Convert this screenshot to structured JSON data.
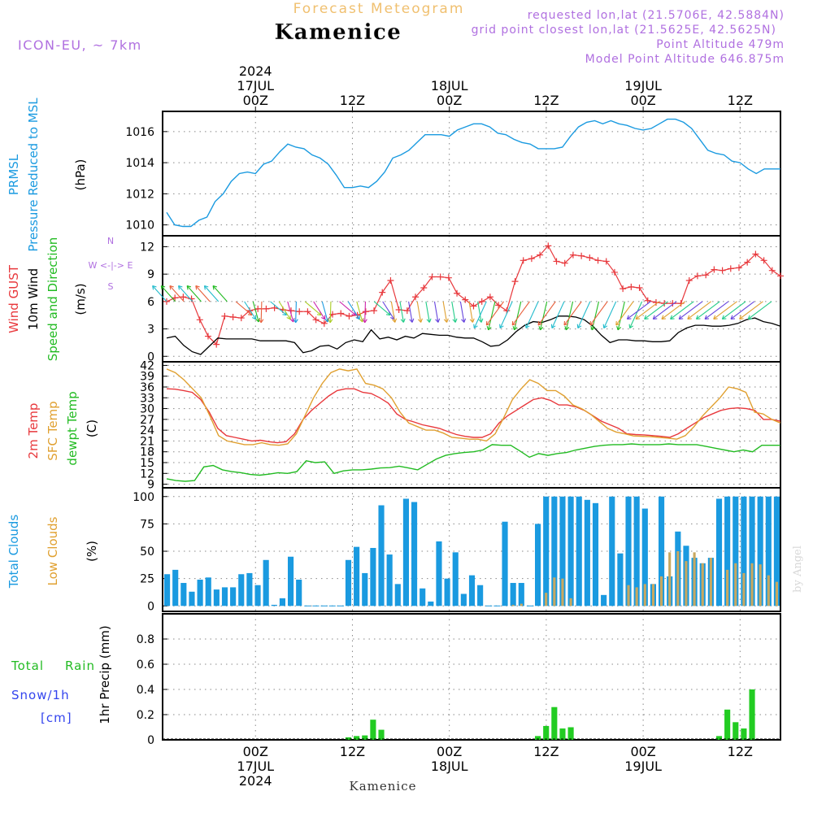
{
  "header": {
    "forecast_title": "Forecast Meteogram",
    "location": "Kamenice",
    "model": "ICON-EU, ~ 7km",
    "requested": "requested lon,lat (21.5706E, 42.5884N)",
    "grid_point": "grid point closest lon,lat (21.5625E, 42.5625N)",
    "point_altitude": "Point Altitude 479m",
    "model_altitude": "Model Point Altitude 646.875m",
    "footer_location": "Kamenice",
    "watermark": "by Angel"
  },
  "colors": {
    "pressure": "#1a9ae0",
    "gust": "#e8383c",
    "wind": "#000000",
    "t2m": "#e8383c",
    "sfc": "#e0a030",
    "dewpt": "#22bb22",
    "total_cloud": "#1a9ae0",
    "low_cloud": "#c8a860",
    "rain": "#22cc22",
    "snow": "#3344ee",
    "model_label": "#b070e0",
    "title_label": "#f0c070"
  },
  "time_axis": {
    "top_labels": [
      {
        "hour": 12,
        "lines": [
          "2024",
          "17JUL",
          "00Z"
        ]
      },
      {
        "hour": 24,
        "lines": [
          "12Z"
        ]
      },
      {
        "hour": 36,
        "lines": [
          "18JUL",
          "00Z"
        ]
      },
      {
        "hour": 48,
        "lines": [
          "12Z"
        ]
      },
      {
        "hour": 60,
        "lines": [
          "19JUL",
          "00Z"
        ]
      },
      {
        "hour": 72,
        "lines": [
          "12Z"
        ]
      }
    ],
    "bottom_labels": [
      {
        "hour": 12,
        "lines": [
          "00Z",
          "17JUL",
          "2024"
        ]
      },
      {
        "hour": 24,
        "lines": [
          "12Z"
        ]
      },
      {
        "hour": 36,
        "lines": [
          "00Z",
          "18JUL"
        ]
      },
      {
        "hour": 48,
        "lines": [
          "12Z"
        ]
      },
      {
        "hour": 60,
        "lines": [
          "00Z",
          "19JUL"
        ]
      },
      {
        "hour": 72,
        "lines": [
          "12Z"
        ]
      }
    ],
    "start_hour": 0.5,
    "end_hour": 77
  },
  "panels": {
    "pressure": {
      "labels": [
        "PRMSL",
        "Pressure Reduced to MSL"
      ],
      "unit": "(hPa)",
      "yticks": [
        1010,
        1012,
        1014,
        1016
      ],
      "ylim": [
        1009.3,
        1017.3
      ]
    },
    "wind": {
      "labels_gust": "Wind GUST",
      "labels_wind": "10m Wind",
      "labels_dir": "Speed and Direction",
      "unit": "(m/s)",
      "compass_n": "N",
      "compass_s": "S",
      "compass_we": "W <-|-> E",
      "yticks": [
        0,
        3,
        6,
        9,
        12
      ],
      "ylim": [
        -0.6,
        13.2
      ]
    },
    "temp": {
      "label_t2m": "2m Temp",
      "label_sfc": "SFC Temp",
      "label_dew": "dewpt Temp",
      "unit": "(C)",
      "yticks": [
        9,
        12,
        15,
        18,
        21,
        24,
        27,
        30,
        33,
        36,
        39,
        42
      ],
      "ylim": [
        8,
        43
      ]
    },
    "clouds": {
      "label_total": "Total Clouds",
      "label_low": "Low Clouds",
      "unit": "(%)",
      "yticks": [
        0,
        25,
        50,
        75,
        100
      ],
      "ylim": [
        -5,
        108
      ]
    },
    "precip": {
      "label_total": "Total",
      "label_rain": "Rain",
      "label_snow": "Snow/1h",
      "label_cm": "[cm]",
      "unit": "1hr Precip (mm)",
      "yticks": [
        0,
        0.2,
        0.4,
        0.6,
        0.8
      ],
      "ylim": [
        0,
        1.0
      ]
    }
  },
  "chart_data": [
    {
      "type": "line",
      "title": "PRMSL Pressure Reduced to MSL",
      "ylabel": "(hPa)",
      "series": [
        {
          "name": "PRMSL",
          "x": [
            1,
            2,
            3,
            4,
            5,
            6,
            7,
            8,
            9,
            10,
            11,
            12,
            13,
            14,
            15,
            16,
            17,
            18,
            19,
            20,
            21,
            22,
            23,
            24,
            25,
            26,
            27,
            28,
            29,
            30,
            31,
            32,
            33,
            34,
            35,
            36,
            37,
            38,
            39,
            40,
            41,
            42,
            43,
            44,
            45,
            46,
            47,
            48,
            49,
            50,
            51,
            52,
            53,
            54,
            55,
            56,
            57,
            58,
            59,
            60,
            61,
            62,
            63,
            64,
            65,
            66,
            67,
            68,
            69,
            70,
            71,
            72,
            73,
            74,
            75,
            76,
            77
          ],
          "values": [
            1010.8,
            1010.0,
            1009.9,
            1009.9,
            1010.3,
            1010.5,
            1011.5,
            1012.0,
            1012.8,
            1013.3,
            1013.4,
            1013.3,
            1013.9,
            1014.1,
            1014.7,
            1015.2,
            1015.0,
            1014.9,
            1014.5,
            1014.3,
            1013.9,
            1013.2,
            1012.4,
            1012.4,
            1012.5,
            1012.4,
            1012.8,
            1013.4,
            1014.3,
            1014.5,
            1014.8,
            1015.3,
            1015.8,
            1015.8,
            1015.8,
            1015.7,
            1016.1,
            1016.3,
            1016.5,
            1016.5,
            1016.3,
            1015.9,
            1015.8,
            1015.5,
            1015.3,
            1015.2,
            1014.9,
            1014.9,
            1014.9,
            1015.0,
            1015.7,
            1016.3,
            1016.6,
            1016.7,
            1016.5,
            1016.7,
            1016.5,
            1016.4,
            1016.2,
            1016.1,
            1016.2,
            1016.5,
            1016.8,
            1016.8,
            1016.6,
            1016.2,
            1015.5,
            1014.8,
            1014.6,
            1014.5,
            1014.1,
            1014.0,
            1013.6,
            1013.3,
            1013.6,
            1013.6,
            1013.6
          ]
        }
      ]
    },
    {
      "type": "line",
      "title": "Wind GUST / 10m Wind Speed and Direction",
      "ylabel": "(m/s)",
      "series": [
        {
          "name": "Wind GUST",
          "values": [
            6.0,
            6.4,
            6.5,
            6.3,
            4.0,
            2.2,
            1.3,
            4.4,
            4.3,
            4.2,
            5.0,
            5.2,
            5.2,
            5.3,
            5.1,
            5.0,
            4.9,
            4.9,
            4.0,
            3.6,
            4.6,
            4.7,
            4.4,
            4.5,
            4.9,
            5.0,
            7.0,
            8.3,
            5.1,
            5.0,
            6.5,
            7.5,
            8.7,
            8.7,
            8.6,
            6.9,
            6.2,
            5.5,
            6.0,
            6.5,
            5.6,
            5.0,
            8.2,
            10.5,
            10.7,
            11.1,
            12.1,
            10.4,
            10.2,
            11.1,
            11.0,
            10.8,
            10.5,
            10.4,
            9.2,
            7.4,
            7.6,
            7.5,
            6.1,
            5.9,
            5.8,
            5.8,
            5.8,
            8.3,
            8.8,
            8.9,
            9.5,
            9.4,
            9.6,
            9.7,
            10.3,
            11.2,
            10.5,
            9.4,
            8.8
          ]
        },
        {
          "name": "10m Wind",
          "values": [
            2.0,
            2.2,
            1.2,
            0.5,
            0.2,
            1.1,
            2.0,
            1.9,
            1.9,
            1.9,
            1.9,
            1.7,
            1.7,
            1.7,
            1.7,
            1.5,
            0.4,
            0.6,
            1.1,
            1.2,
            0.8,
            1.5,
            1.8,
            1.6,
            2.9,
            1.9,
            2.1,
            1.8,
            2.2,
            2.0,
            2.5,
            2.4,
            2.3,
            2.3,
            2.1,
            2.0,
            2.0,
            1.6,
            1.1,
            1.2,
            1.8,
            2.7,
            3.4,
            3.8,
            3.7,
            4.0,
            4.4,
            4.4,
            4.3,
            4.0,
            3.3,
            2.3,
            1.5,
            1.8,
            1.8,
            1.7,
            1.7,
            1.6,
            1.6,
            1.7,
            2.6,
            3.1,
            3.4,
            3.4,
            3.3,
            3.3,
            3.4,
            3.6,
            4.0,
            4.2,
            3.8,
            3.6,
            3.3
          ]
        }
      ]
    },
    {
      "type": "line",
      "title": "2m Temp / SFC Temp / dewpt Temp",
      "ylabel": "(C)",
      "series": [
        {
          "name": "2m Temp",
          "values": [
            35.5,
            35.4,
            35.0,
            34.5,
            32.5,
            29.0,
            24.5,
            22.5,
            22.0,
            21.5,
            21.0,
            21.2,
            20.8,
            20.5,
            20.8,
            23.0,
            27.0,
            29.5,
            31.5,
            33.5,
            35.0,
            35.5,
            35.5,
            34.5,
            34.2,
            33.0,
            31.5,
            28.5,
            27.0,
            26.3,
            25.5,
            25.0,
            24.5,
            23.6,
            22.8,
            22.3,
            22.0,
            22.0,
            23.0,
            26.0,
            28.0,
            29.5,
            31.0,
            32.5,
            33.0,
            32.3,
            31.0,
            31.0,
            30.5,
            29.5,
            28.0,
            26.5,
            25.5,
            24.5,
            23.0,
            22.8,
            22.7,
            22.5,
            22.3,
            22.0,
            23.0,
            24.5,
            26.0,
            27.5,
            28.5,
            29.5,
            30.0,
            30.2,
            30.0,
            29.5,
            27.0,
            27.0,
            26.5
          ]
        },
        {
          "name": "SFC Temp",
          "values": [
            41.0,
            40.0,
            38.0,
            35.5,
            33.0,
            28.0,
            22.5,
            21.0,
            20.5,
            20.0,
            20.0,
            20.5,
            20.0,
            19.8,
            20.2,
            23.0,
            28.0,
            33.0,
            37.0,
            40.0,
            41.0,
            40.5,
            41.0,
            37.0,
            36.5,
            35.5,
            33.0,
            29.0,
            26.0,
            25.0,
            24.0,
            24.0,
            23.2,
            22.0,
            21.8,
            21.5,
            21.5,
            21.0,
            23.0,
            27.5,
            32.5,
            35.5,
            38.0,
            37.0,
            35.0,
            35.0,
            33.5,
            31.0,
            30.0,
            28.5,
            26.5,
            24.5,
            23.5,
            23.0,
            22.4,
            22.3,
            22.2,
            22.0,
            21.8,
            21.5,
            22.5,
            25.0,
            28.0,
            30.5,
            33.0,
            36.0,
            35.5,
            34.5,
            29.0,
            28.5,
            27.0,
            26.0
          ]
        },
        {
          "name": "dewpt Temp",
          "values": [
            10.5,
            10.0,
            9.8,
            10.0,
            13.8,
            14.2,
            13.0,
            12.5,
            12.2,
            11.7,
            11.5,
            11.8,
            12.2,
            12.0,
            12.5,
            15.5,
            15.0,
            15.2,
            12.0,
            12.7,
            13.0,
            13.0,
            13.2,
            13.5,
            13.6,
            14.0,
            13.5,
            13.0,
            14.5,
            16.0,
            17.0,
            17.5,
            17.8,
            18.0,
            18.5,
            20.0,
            19.8,
            19.8,
            18.2,
            16.5,
            17.5,
            17.0,
            17.5,
            17.8,
            18.5,
            19.0,
            19.5,
            19.8,
            20.0,
            20.0,
            20.2,
            20.0,
            20.0,
            20.0,
            20.2,
            20.0,
            20.0,
            20.0,
            19.5,
            19.0,
            18.5,
            18.0,
            18.5,
            18.0,
            19.8,
            19.8,
            19.8
          ]
        }
      ]
    },
    {
      "type": "bar",
      "title": "Total Clouds / Low Clouds",
      "ylabel": "(%)",
      "series": [
        {
          "name": "Total Clouds",
          "values": [
            29,
            33,
            21,
            13,
            24,
            26,
            15,
            17,
            17,
            29,
            30,
            19,
            42,
            1,
            7,
            45,
            24,
            0,
            0,
            0,
            0,
            0,
            42,
            54,
            30,
            53,
            92,
            47,
            20,
            98,
            95,
            16,
            4,
            59,
            25,
            49,
            11,
            28,
            19,
            0,
            0,
            77,
            21,
            21,
            0,
            75,
            100,
            100,
            100,
            100,
            100,
            97,
            94,
            10,
            100,
            48,
            100,
            100,
            89,
            20,
            100,
            27,
            68,
            55,
            44,
            39,
            44,
            98,
            100,
            100,
            100,
            100,
            100,
            100,
            100
          ]
        },
        {
          "name": "Low Clouds",
          "values": [
            0,
            0,
            0,
            0,
            0,
            0,
            0,
            0,
            0,
            0,
            0,
            0,
            0,
            0,
            0,
            0,
            0,
            0,
            0,
            0,
            0,
            0,
            0,
            0,
            0,
            0,
            0,
            0,
            0,
            0,
            0,
            0,
            0,
            0,
            0,
            0,
            0,
            0,
            0,
            0,
            0,
            0,
            1,
            2,
            0,
            0,
            12,
            26,
            25,
            7,
            0,
            0,
            0,
            0,
            0,
            0,
            19,
            17,
            20,
            20,
            27,
            49,
            50,
            41,
            49,
            39,
            44,
            0,
            33,
            39,
            30,
            39,
            38,
            28,
            22
          ]
        }
      ]
    },
    {
      "type": "bar",
      "title": "Total Rain / Snow 1hr Precip",
      "ylabel": "1hr Precip (mm)",
      "series": [
        {
          "name": "Total Rain",
          "values": [
            0,
            0,
            0,
            0,
            0,
            0,
            0,
            0,
            0,
            0,
            0,
            0,
            0,
            0,
            0,
            0,
            0,
            0,
            0,
            0,
            0,
            0,
            0.02,
            0.03,
            0.035,
            0.16,
            0.08,
            0,
            0,
            0,
            0,
            0,
            0,
            0,
            0,
            0,
            0,
            0,
            0,
            0,
            0,
            0,
            0,
            0,
            0,
            0.03,
            0.11,
            0.26,
            0.09,
            0.1,
            0,
            0,
            0,
            0,
            0,
            0,
            0,
            0,
            0,
            0,
            0,
            0,
            0,
            0,
            0,
            0,
            0,
            0.03,
            0.24,
            0.14,
            0.09,
            0.4,
            0,
            0,
            0
          ]
        }
      ]
    }
  ]
}
